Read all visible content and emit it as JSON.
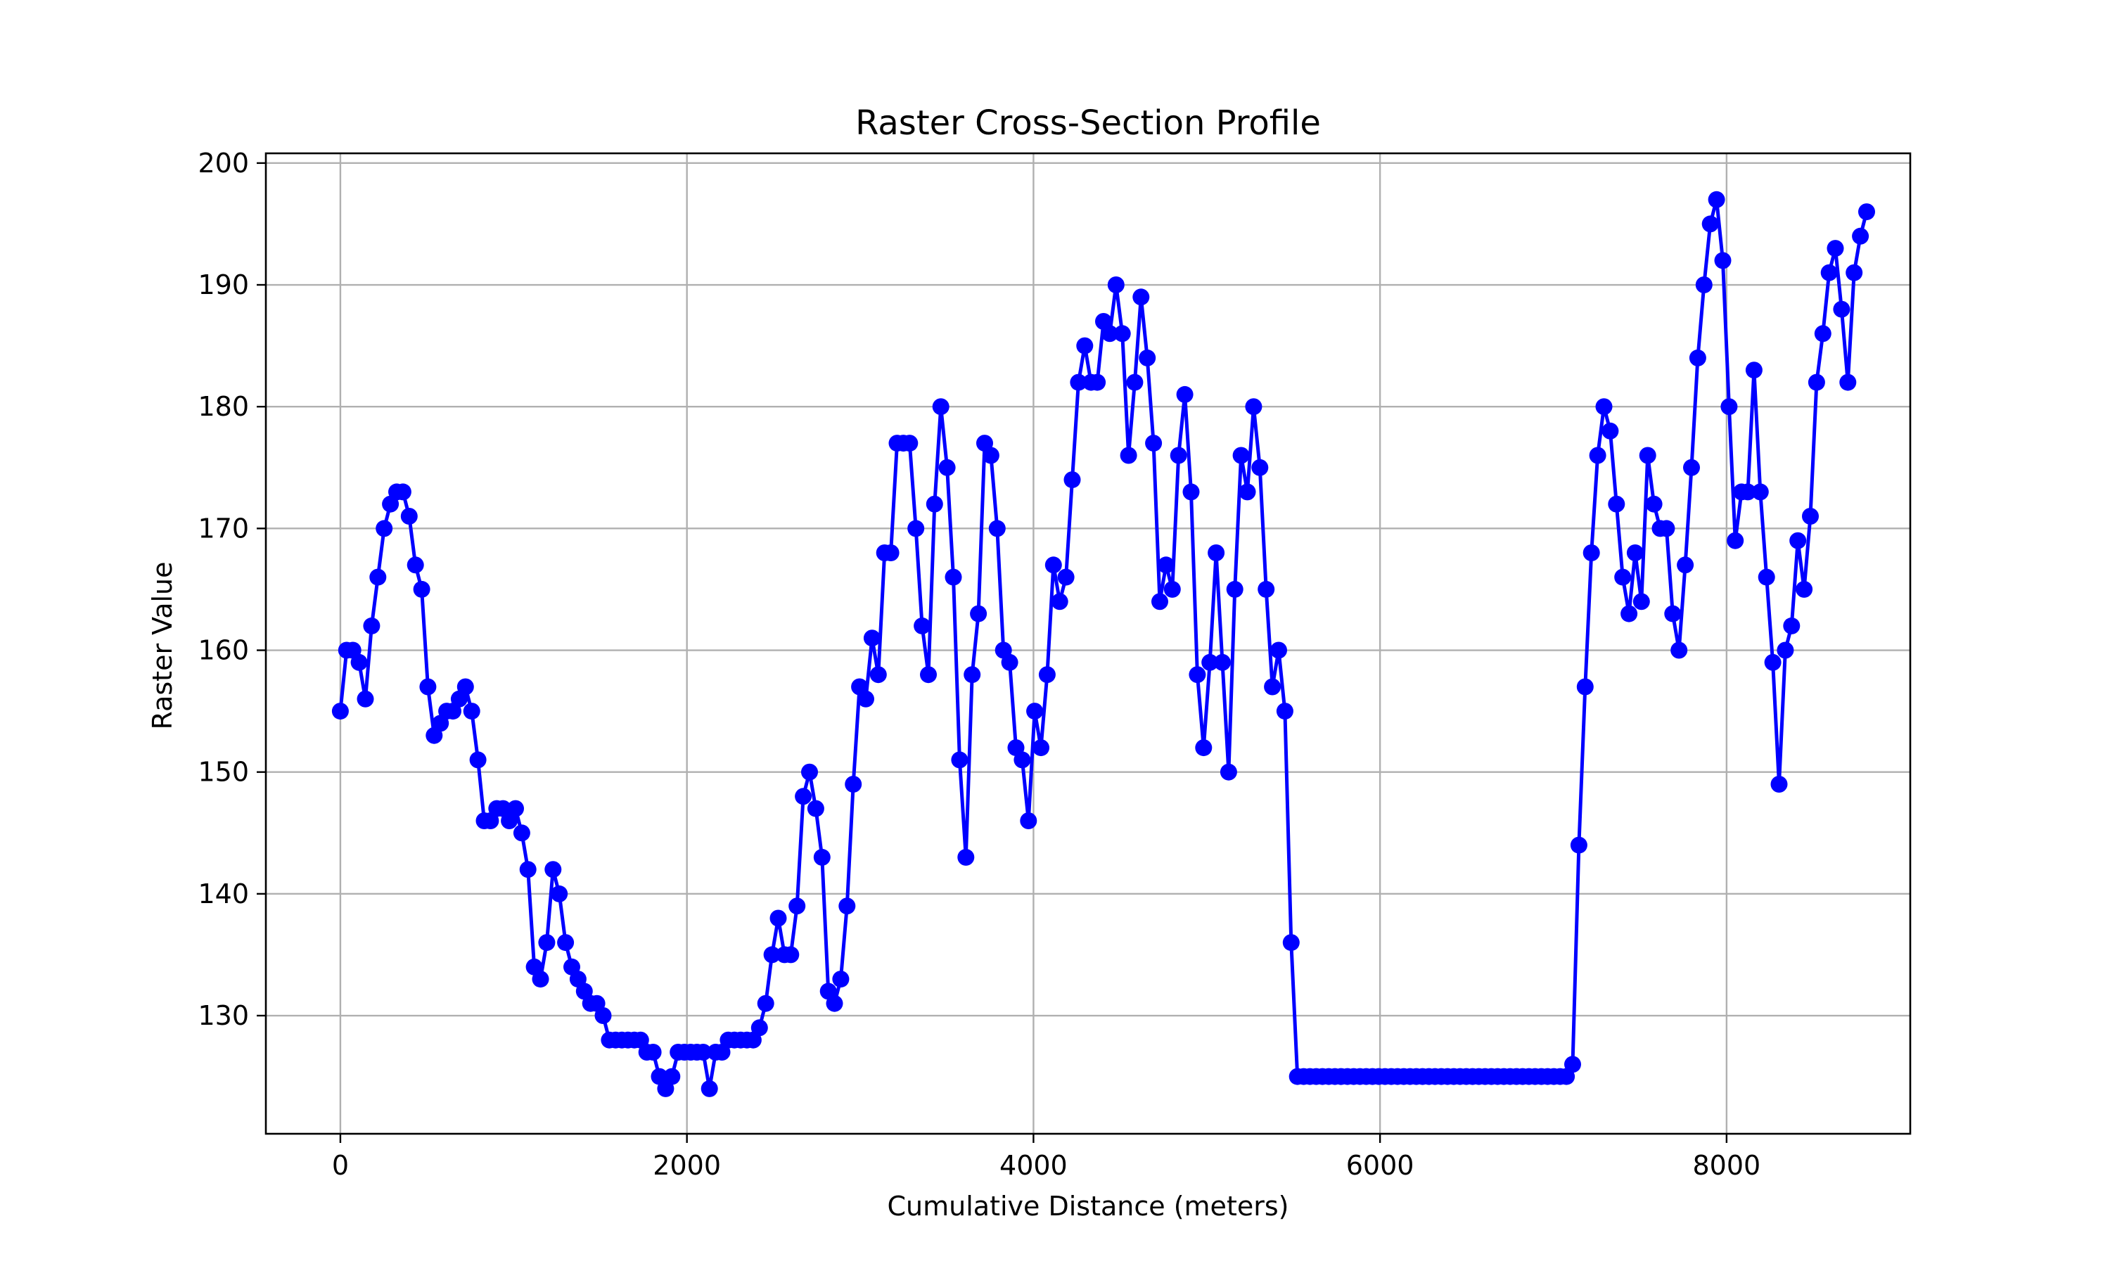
{
  "chart_data": {
    "type": "line",
    "title": "Raster Cross-Section Profile",
    "xlabel": "Cumulative Distance (meters)",
    "ylabel": "Raster Value",
    "xlim": [
      -430,
      9060
    ],
    "ylim": [
      120.3,
      200.8
    ],
    "xticks": [
      0,
      2000,
      4000,
      6000,
      8000
    ],
    "yticks": [
      130,
      140,
      150,
      160,
      170,
      180,
      190,
      200
    ],
    "grid": true,
    "marker": "circle",
    "series": [
      {
        "color": "#0000ff",
        "x_start": 0,
        "x_step": 36.1,
        "values": [
          155,
          160,
          160,
          159,
          156,
          162,
          166,
          170,
          172,
          173,
          173,
          171,
          167,
          165,
          157,
          153,
          154,
          155,
          155,
          156,
          157,
          155,
          151,
          146,
          146,
          147,
          147,
          146,
          147,
          145,
          142,
          134,
          133,
          136,
          142,
          140,
          136,
          134,
          133,
          132,
          131,
          131,
          130,
          128,
          128,
          128,
          128,
          128,
          128,
          127,
          127,
          125,
          124,
          125,
          127,
          127,
          127,
          127,
          127,
          124,
          127,
          127,
          128,
          128,
          128,
          128,
          128,
          129,
          131,
          135,
          138,
          135,
          135,
          139,
          148,
          150,
          147,
          143,
          132,
          131,
          133,
          139,
          149,
          157,
          156,
          161,
          158,
          168,
          168,
          177,
          177,
          177,
          170,
          162,
          158,
          172,
          180,
          175,
          166,
          151,
          143,
          158,
          163,
          177,
          176,
          170,
          160,
          159,
          152,
          151,
          146,
          155,
          152,
          158,
          167,
          164,
          166,
          174,
          182,
          185,
          182,
          182,
          187,
          186,
          190,
          186,
          176,
          182,
          189,
          184,
          177,
          164,
          167,
          165,
          176,
          181,
          173,
          158,
          152,
          159,
          168,
          159,
          150,
          165,
          176,
          173,
          180,
          175,
          165,
          157,
          160,
          155,
          136,
          125,
          125,
          125,
          125,
          125,
          125,
          125,
          125,
          125,
          125,
          125,
          125,
          125,
          125,
          125,
          125,
          125,
          125,
          125,
          125,
          125,
          125,
          125,
          125,
          125,
          125,
          125,
          125,
          125,
          125,
          125,
          125,
          125,
          125,
          125,
          125,
          125,
          125,
          125,
          125,
          125,
          125,
          125,
          125,
          126,
          144,
          157,
          168,
          176,
          180,
          178,
          172,
          166,
          163,
          168,
          164,
          176,
          172,
          170,
          170,
          163,
          160,
          167,
          175,
          184,
          190,
          195,
          197,
          192,
          180,
          169,
          173,
          173,
          183,
          173,
          166,
          159,
          149,
          160,
          162,
          169,
          165,
          171,
          182,
          186,
          191,
          193,
          188,
          182,
          191,
          194,
          196
        ]
      }
    ]
  }
}
